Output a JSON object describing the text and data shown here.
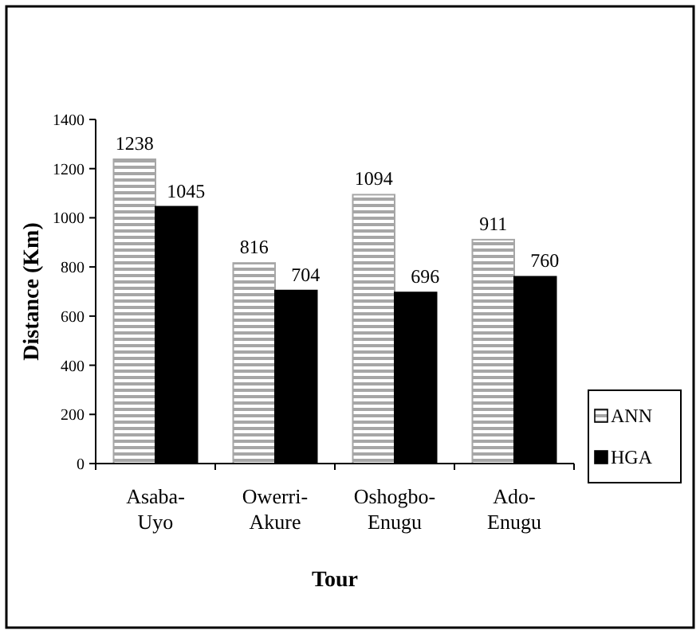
{
  "chart_data": {
    "type": "bar",
    "xlabel": "Tour",
    "ylabel": "Distance (Km)",
    "categories": [
      "Asaba-Uyo",
      "Owerri-Akure",
      "Oshogbo-Enugu",
      "Ado-Enugu"
    ],
    "series": [
      {
        "name": "ANN",
        "color": "#a6a6a6",
        "values": [
          1238,
          816,
          1094,
          911
        ]
      },
      {
        "name": "HGA",
        "color": "#000000",
        "values": [
          1045,
          704,
          696,
          760
        ]
      }
    ],
    "ylim": [
      0,
      1400
    ],
    "yticks": [
      0,
      200,
      400,
      600,
      800,
      1000,
      1200,
      1400
    ],
    "data_labels": true,
    "legend": "right",
    "grid": false
  }
}
